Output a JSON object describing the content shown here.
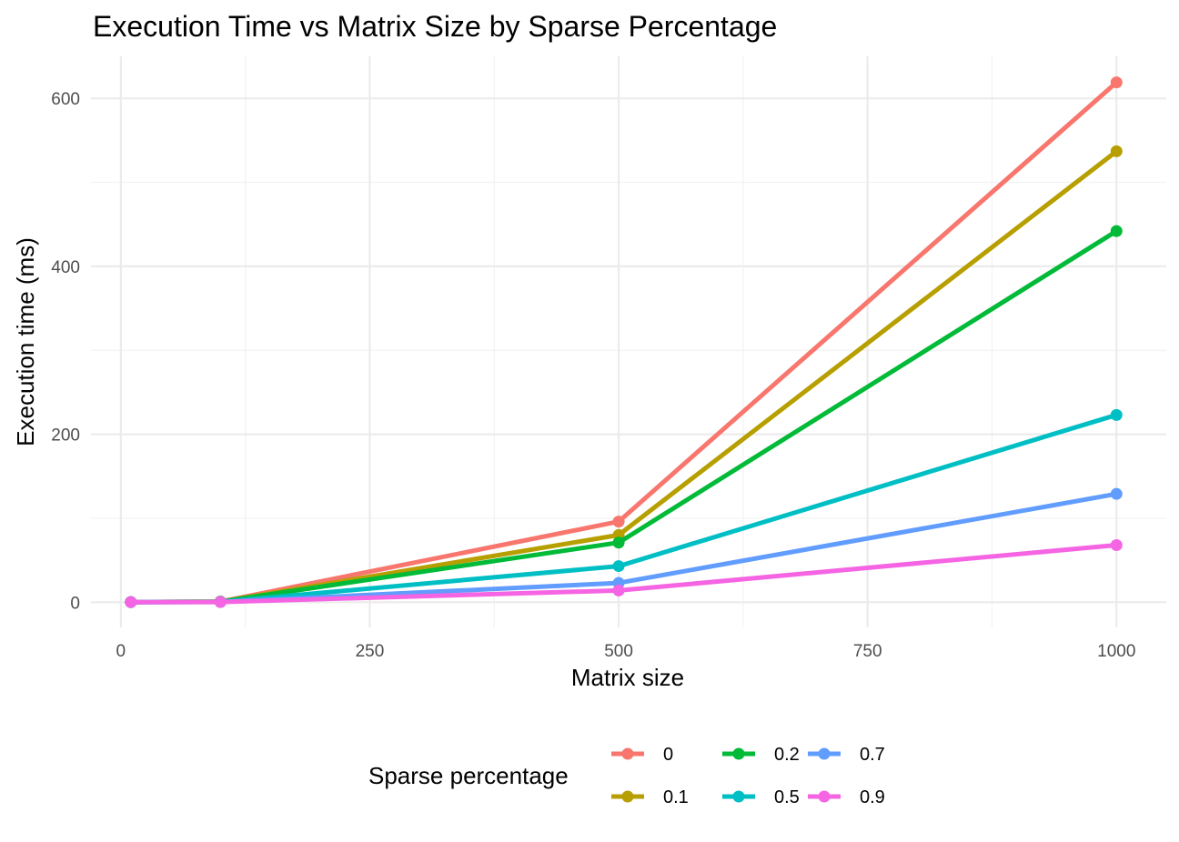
{
  "chart_data": {
    "type": "line",
    "title": "Execution Time vs Matrix Size by Sparse Percentage",
    "xlabel": "Matrix size",
    "ylabel": "Execution time (ms)",
    "x": [
      10,
      100,
      500,
      1000
    ],
    "xlim": [
      -30,
      1050
    ],
    "ylim": [
      -30,
      650
    ],
    "xticks": [
      0,
      250,
      500,
      750,
      1000
    ],
    "xtick_labels": [
      "0",
      "250",
      "500",
      "750",
      "1000"
    ],
    "yticks": [
      0,
      200,
      400,
      600
    ],
    "ytick_labels": [
      "0",
      "200",
      "400",
      "600"
    ],
    "grid": true,
    "legend": {
      "title": "Sparse percentage",
      "position": "bottom"
    },
    "series": [
      {
        "name": "0",
        "color": "#F8766D",
        "values": [
          0.2,
          0.8,
          96,
          619
        ]
      },
      {
        "name": "0.1",
        "color": "#B79F00",
        "values": [
          0.2,
          0.7,
          80,
          537
        ]
      },
      {
        "name": "0.2",
        "color": "#00BA38",
        "values": [
          0.2,
          0.6,
          71,
          442
        ]
      },
      {
        "name": "0.5",
        "color": "#00BFC4",
        "values": [
          0.1,
          0.4,
          43,
          223
        ]
      },
      {
        "name": "0.7",
        "color": "#619CFF",
        "values": [
          0.1,
          0.3,
          23,
          129
        ]
      },
      {
        "name": "0.9",
        "color": "#F564E3",
        "values": [
          0.1,
          0.2,
          14,
          68
        ]
      }
    ]
  }
}
